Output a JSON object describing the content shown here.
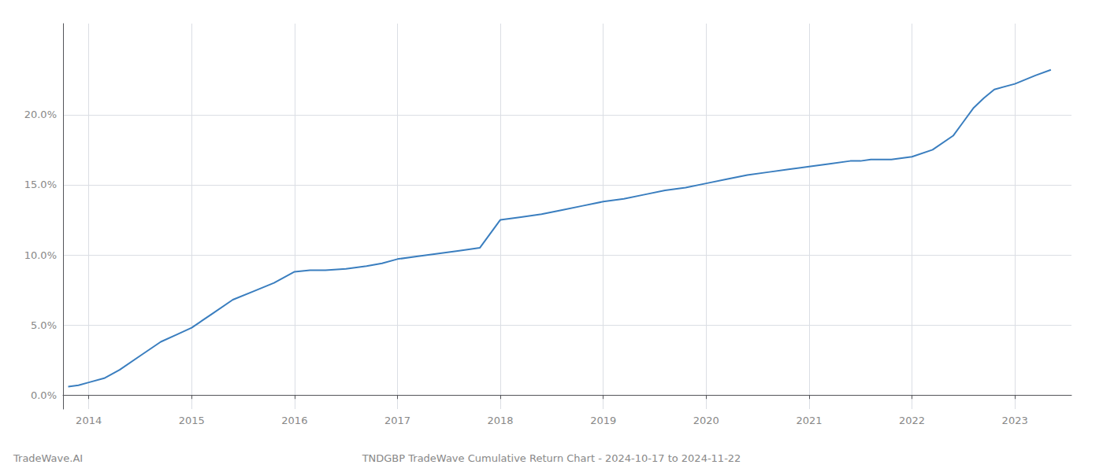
{
  "chart_data": {
    "type": "line",
    "title": "TNDGBP TradeWave Cumulative Return Chart - 2024-10-17 to 2024-11-22",
    "annotations": [
      "TradeWave.AI"
    ],
    "color": "#3a7ebf",
    "grid": true,
    "x": [
      2013.8,
      2013.9,
      2014.0,
      2014.15,
      2014.3,
      2014.5,
      2014.7,
      2014.85,
      2015.0,
      2015.2,
      2015.4,
      2015.6,
      2015.8,
      2016.0,
      2016.15,
      2016.3,
      2016.5,
      2016.7,
      2016.85,
      2017.0,
      2017.2,
      2017.4,
      2017.6,
      2017.8,
      2018.0,
      2018.2,
      2018.4,
      2018.6,
      2018.8,
      2019.0,
      2019.2,
      2019.4,
      2019.6,
      2019.8,
      2020.0,
      2020.2,
      2020.4,
      2020.6,
      2020.8,
      2021.0,
      2021.2,
      2021.4,
      2021.5,
      2021.6,
      2021.7,
      2021.8,
      2022.0,
      2022.2,
      2022.4,
      2022.5,
      2022.6,
      2022.7,
      2022.8,
      2023.0,
      2023.2,
      2023.35
    ],
    "values": [
      0.006,
      0.007,
      0.009,
      0.012,
      0.018,
      0.028,
      0.038,
      0.043,
      0.048,
      0.058,
      0.068,
      0.074,
      0.08,
      0.088,
      0.089,
      0.089,
      0.09,
      0.092,
      0.094,
      0.097,
      0.099,
      0.101,
      0.103,
      0.105,
      0.125,
      0.127,
      0.129,
      0.132,
      0.135,
      0.138,
      0.14,
      0.143,
      0.146,
      0.148,
      0.151,
      0.154,
      0.157,
      0.159,
      0.161,
      0.163,
      0.165,
      0.167,
      0.167,
      0.168,
      0.168,
      0.168,
      0.17,
      0.175,
      0.185,
      0.195,
      0.205,
      0.212,
      0.218,
      0.222,
      0.228,
      0.232
    ],
    "xlim": [
      2013.75,
      2023.55
    ],
    "xticks": [
      2014,
      2015,
      2016,
      2017,
      2018,
      2019,
      2020,
      2021,
      2022,
      2023
    ],
    "ylim": [
      -0.01,
      0.265
    ],
    "yticks": [
      {
        "value": 0.0,
        "label": "0.0%"
      },
      {
        "value": 0.05,
        "label": "5.0%"
      },
      {
        "value": 0.1,
        "label": "10.0%"
      },
      {
        "value": 0.15,
        "label": "15.0%"
      },
      {
        "value": 0.2,
        "label": "20.0%"
      }
    ]
  }
}
